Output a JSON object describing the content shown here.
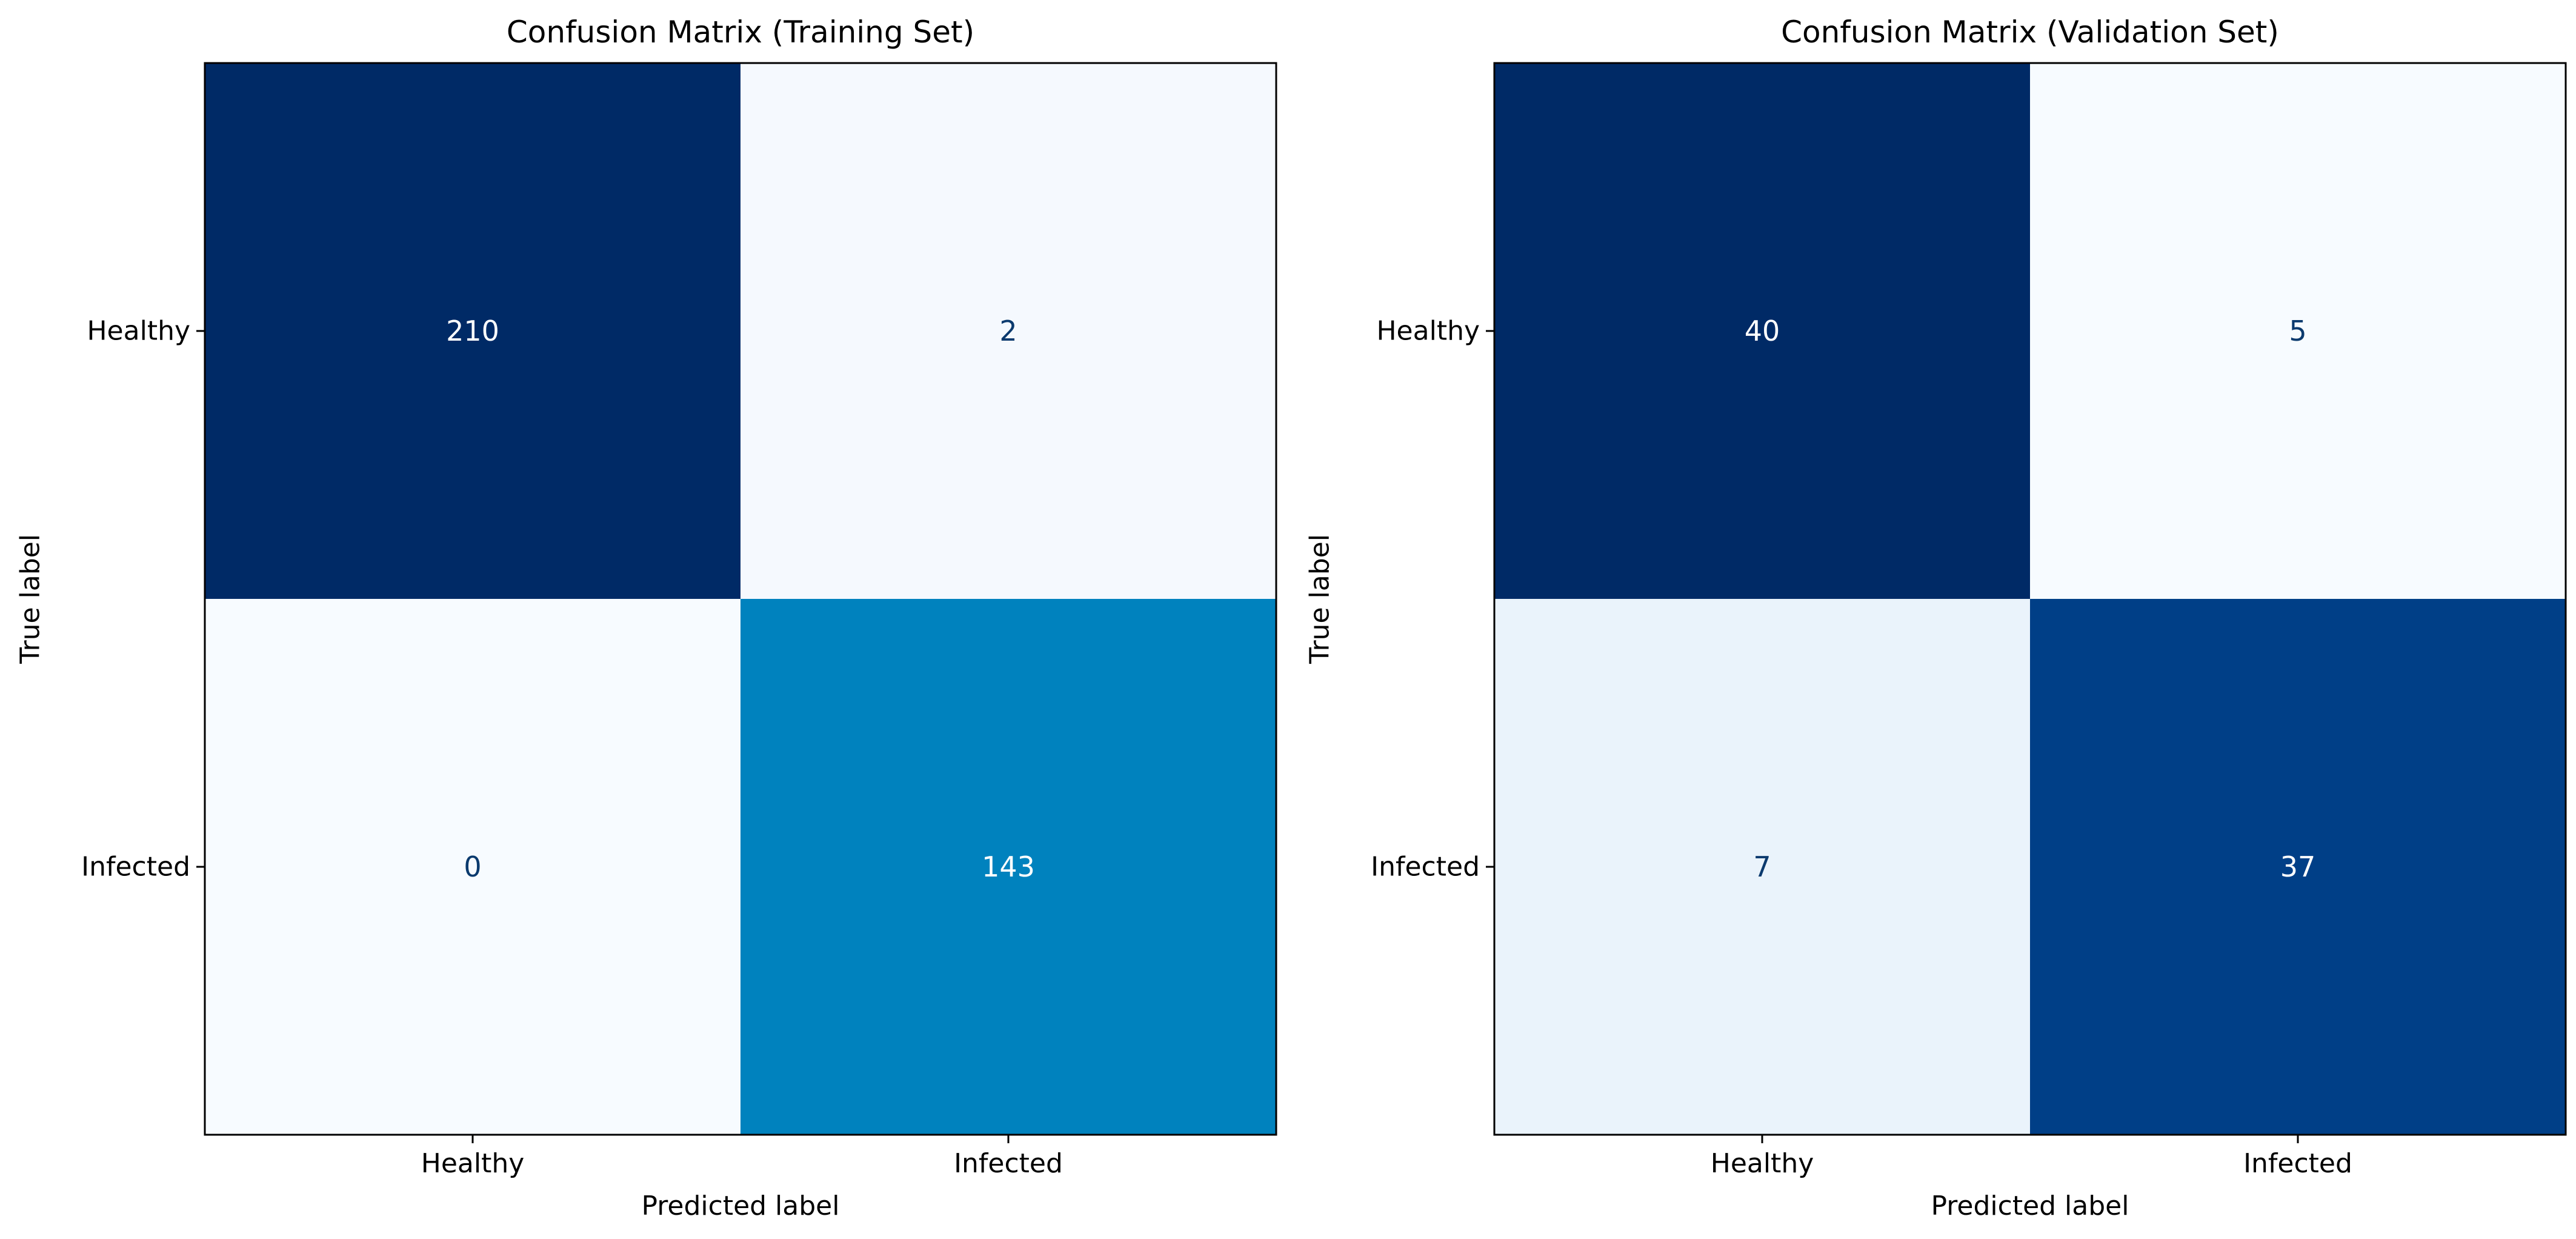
{
  "chart_data": [
    {
      "type": "heatmap",
      "title": "Confusion Matrix (Training Set)",
      "xlabel": "Predicted label",
      "ylabel": "True label",
      "x_categories": [
        "Healthy",
        "Infected"
      ],
      "y_categories": [
        "Healthy",
        "Infected"
      ],
      "values": [
        [
          210,
          2
        ],
        [
          0,
          143
        ]
      ],
      "colormap": "Blues",
      "grid": false,
      "cell_colors": [
        [
          "#002a66",
          "#f5f9fe"
        ],
        [
          "#f7fbff",
          "#0082be"
        ]
      ],
      "value_text_colors": [
        [
          "#ffffff",
          "#0b3a6e"
        ],
        [
          "#0b3a6e",
          "#ffffff"
        ]
      ]
    },
    {
      "type": "heatmap",
      "title": "Confusion Matrix (Validation Set)",
      "xlabel": "Predicted label",
      "ylabel": "True label",
      "x_categories": [
        "Healthy",
        "Infected"
      ],
      "y_categories": [
        "Healthy",
        "Infected"
      ],
      "values": [
        [
          40,
          5
        ],
        [
          7,
          37
        ]
      ],
      "colormap": "Blues",
      "grid": false,
      "cell_colors": [
        [
          "#002a66",
          "#f7fbff"
        ],
        [
          "#eaf3fb",
          "#003f87"
        ]
      ],
      "value_text_colors": [
        [
          "#ffffff",
          "#0b3a6e"
        ],
        [
          "#0b3a6e",
          "#ffffff"
        ]
      ]
    }
  ]
}
